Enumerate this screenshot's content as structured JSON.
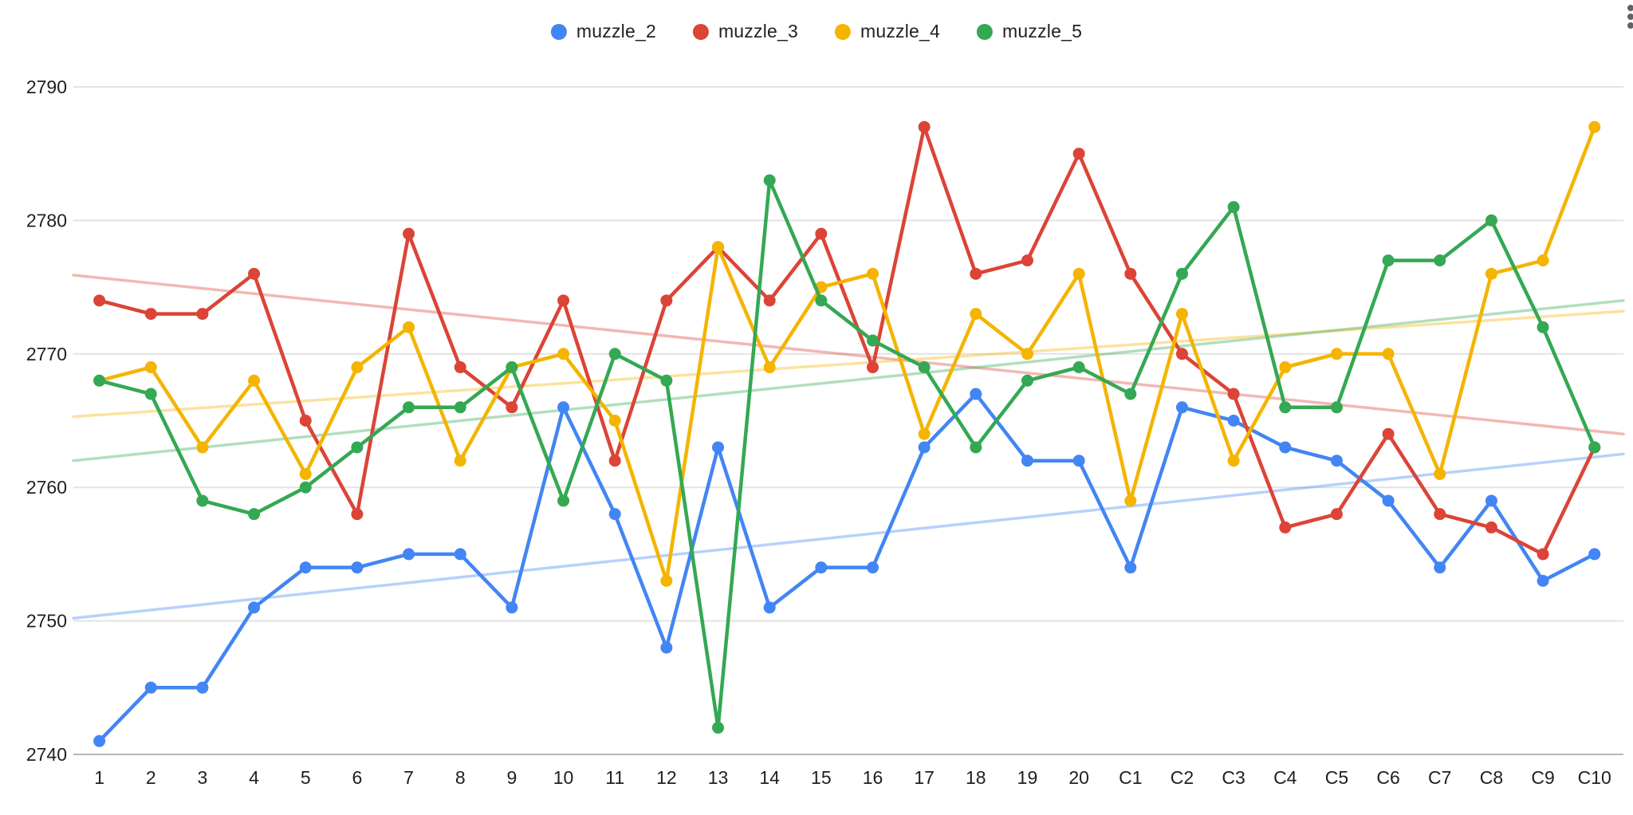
{
  "chart_data": {
    "type": "line",
    "title": "",
    "legend_position": "top",
    "grid": true,
    "ylim": [
      2740,
      2790
    ],
    "y_ticks": [
      2790,
      2780,
      2770,
      2760,
      2750,
      2740
    ],
    "categories": [
      "1",
      "2",
      "3",
      "4",
      "5",
      "6",
      "7",
      "8",
      "9",
      "10",
      "11",
      "12",
      "13",
      "14",
      "15",
      "16",
      "17",
      "18",
      "19",
      "20",
      "C1",
      "C2",
      "C3",
      "C4",
      "C5",
      "C6",
      "C7",
      "C8",
      "C9",
      "C10"
    ],
    "series": [
      {
        "name": "muzzle_2",
        "color": "#4285f4",
        "values": [
          2741,
          2745,
          2745,
          2751,
          2754,
          2754,
          2755,
          2755,
          2751,
          2766,
          2758,
          2748,
          2763,
          2751,
          2754,
          2754,
          2763,
          2767,
          2762,
          2762,
          2754,
          2766,
          2765,
          2763,
          2762,
          2759,
          2754,
          2759,
          2753,
          2755
        ],
        "trendline": {
          "start": 2750.2,
          "end": 2762.5
        }
      },
      {
        "name": "muzzle_3",
        "color": "#db4437",
        "values": [
          2774,
          2773,
          2773,
          2776,
          2765,
          2758,
          2779,
          2769,
          2766,
          2774,
          2762,
          2774,
          2778,
          2774,
          2779,
          2769,
          2787,
          2776,
          2777,
          2785,
          2776,
          2770,
          2767,
          2757,
          2758,
          2764,
          2758,
          2757,
          2755,
          2763
        ],
        "trendline": {
          "start": 2775.9,
          "end": 2764.0
        }
      },
      {
        "name": "muzzle_4",
        "color": "#f4b400",
        "values": [
          2768,
          2769,
          2763,
          2768,
          2761,
          2769,
          2772,
          2762,
          2769,
          2770,
          2765,
          2753,
          2778,
          2769,
          2775,
          2776,
          2764,
          2773,
          2770,
          2776,
          2759,
          2773,
          2762,
          2769,
          2770,
          2770,
          2761,
          2776,
          2777,
          2787
        ],
        "trendline": {
          "start": 2765.3,
          "end": 2773.2
        }
      },
      {
        "name": "muzzle_5",
        "color": "#34a853",
        "values": [
          2768,
          2767,
          2759,
          2758,
          2760,
          2763,
          2766,
          2766,
          2769,
          2759,
          2770,
          2768,
          2742,
          2783,
          2774,
          2771,
          2769,
          2763,
          2768,
          2769,
          2767,
          2776,
          2781,
          2766,
          2766,
          2777,
          2777,
          2780,
          2772,
          2763
        ],
        "trendline": {
          "start": 2762.0,
          "end": 2774.0
        }
      }
    ]
  },
  "ui": {
    "background": "#ffffff",
    "grid_color": "#e3e3e3",
    "axis_line_color": "#b7b7b7",
    "label_color": "#1f1f1f",
    "menu_icon": "kebab-menu",
    "trendline_opacity": 0.38
  }
}
